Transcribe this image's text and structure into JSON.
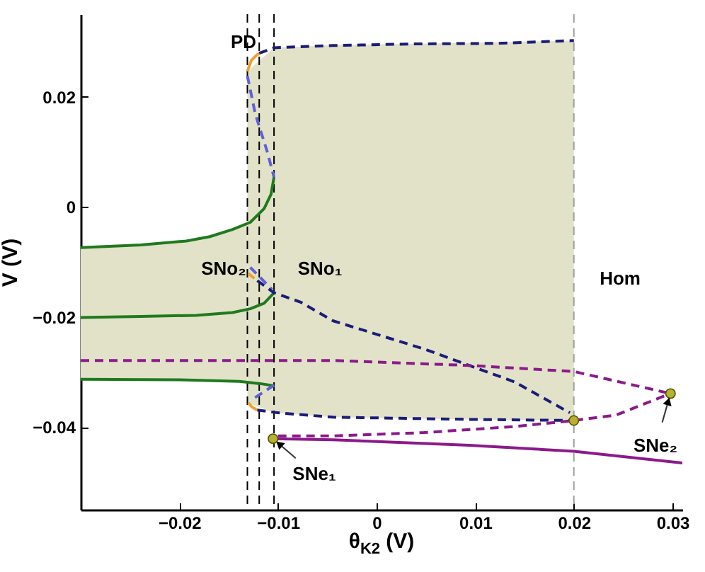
{
  "chart_data": {
    "type": "line",
    "xlabel": "θ$_{K2}$  (V)",
    "ylabel": "V   (V)",
    "xlim": [
      -0.03,
      0.031
    ],
    "ylim": [
      -0.055,
      0.035
    ],
    "xticks": [
      -0.02,
      -0.01,
      0,
      0.01,
      0.02,
      0.03
    ],
    "yticks": [
      -0.04,
      -0.02,
      0,
      0.02
    ],
    "grid": false,
    "marker": "none",
    "series": [
      {
        "type": "line",
        "color": "#e2e2c8",
        "x": [
          -0.03,
          -0.0239,
          -0.0193,
          -0.0146,
          -0.0131
        ],
        "values": [
          null,
          null,
          null,
          null,
          null
        ],
        "upper": [
          -0.0074,
          -0.0069,
          -0.0062,
          -0.0041,
          -0.0031
        ],
        "lower": [
          -0.0313,
          -0.0314,
          -0.0314,
          -0.0316,
          -0.0317
        ]
      },
      {
        "type": "line",
        "color": "#e2e2c8",
        "x": [
          -0.0131,
          -0.0104,
          -0.0044,
          0.0094,
          0.02
        ],
        "values": [
          null,
          null,
          null,
          null,
          null
        ],
        "upper": [
          0.0246,
          0.0289,
          0.0294,
          0.0298,
          0.0302
        ],
        "lower": [
          -0.0356,
          -0.0374,
          -0.0382,
          -0.0386,
          -0.0388
        ]
      },
      {
        "color": "#1f7a1f",
        "line_style": "solid",
        "x": [
          -0.03,
          -0.0239,
          -0.0193,
          -0.0169,
          -0.0146,
          -0.0128,
          -0.0114,
          -0.0107,
          -0.0104
        ],
        "values": [
          -0.0074,
          -0.0069,
          -0.0062,
          -0.0054,
          -0.0041,
          -0.0028,
          -0.0003,
          0.0023,
          0.0054
        ]
      },
      {
        "color": "#1f7a1f",
        "line_style": "solid",
        "x": [
          -0.03,
          -0.0239,
          -0.0183,
          -0.0146,
          -0.0128,
          -0.0114,
          -0.0104
        ],
        "values": [
          -0.0201,
          -0.0199,
          -0.0197,
          -0.0192,
          -0.0185,
          -0.0175,
          -0.0156
        ]
      },
      {
        "color": "#1f7a1f",
        "line_style": "solid",
        "x": [
          -0.03,
          -0.02,
          -0.0139,
          -0.0118,
          -0.0104
        ],
        "values": [
          -0.0313,
          -0.0314,
          -0.0317,
          -0.0321,
          -0.0325
        ]
      },
      {
        "color": "#f0a030",
        "line_style": "solid",
        "x": [
          -0.0131,
          -0.0127,
          -0.0122,
          -0.0119,
          -0.0125,
          -0.013,
          -0.0124,
          -0.0127,
          -0.013,
          -0.0126,
          -0.0121
        ],
        "values": [
          0.0246,
          0.0266,
          0.0275,
          0.0279,
          null,
          -0.0121,
          -0.013,
          null,
          -0.0356,
          -0.0364,
          -0.0369
        ]
      },
      {
        "color": "#6060d8",
        "line_style": "dashed",
        "x": [
          -0.0131,
          -0.0123,
          -0.0111,
          -0.0104
        ],
        "values": [
          0.0238,
          0.0169,
          0.0101,
          0.0054
        ]
      },
      {
        "color": "#6060d8",
        "line_style": "dashed",
        "x": [
          -0.0128,
          -0.0106
        ],
        "values": [
          -0.011,
          -0.015
        ]
      },
      {
        "color": "#6060d8",
        "line_style": "dashed",
        "x": [
          -0.0104,
          -0.0128
        ],
        "values": [
          -0.0324,
          -0.0352
        ]
      },
      {
        "color": "#1c1c78",
        "line_style": "dashed",
        "x": [
          -0.0119,
          -0.0104,
          -0.0044,
          0.0039,
          0.0122,
          0.02
        ],
        "values": [
          0.0279,
          0.0289,
          0.0293,
          0.0296,
          0.0297,
          0.0302
        ]
      },
      {
        "color": "#1c1c78",
        "line_style": "dashed",
        "x": [
          -0.0121,
          -0.0104,
          -0.0077,
          -0.0044,
          0.0048,
          0.014,
          0.0196
        ],
        "values": [
          -0.0134,
          -0.0156,
          -0.0173,
          -0.0207,
          -0.0258,
          -0.0318,
          -0.0374
        ]
      },
      {
        "color": "#1c1c78",
        "line_style": "dashed",
        "x": [
          -0.0121,
          -0.01,
          -0.0044,
          0.0094,
          0.02
        ],
        "values": [
          -0.0369,
          -0.0374,
          -0.0382,
          -0.0386,
          -0.0388
        ]
      },
      {
        "color": "#8b1a8b",
        "line_style": "dashed",
        "x": [
          -0.03,
          -0.0044,
          0.0094,
          0.02,
          0.0298
        ],
        "values": [
          -0.0279,
          -0.0279,
          -0.0288,
          -0.0299,
          -0.0339
        ]
      },
      {
        "color": "#8b1a8b",
        "line_style": "dashed",
        "x": [
          -0.01,
          -0.0044,
          0.0048,
          0.014,
          0.02,
          0.0243,
          0.0298
        ],
        "values": [
          -0.0416,
          -0.0416,
          -0.041,
          -0.0399,
          -0.0388,
          -0.0378,
          -0.0339
        ]
      },
      {
        "color": "#8b1a8b",
        "line_style": "solid",
        "x": [
          -0.0105,
          -0.0044,
          0.0094,
          0.02,
          0.031
        ],
        "values": [
          -0.0421,
          -0.0423,
          -0.0433,
          -0.0444,
          -0.0465
        ]
      },
      {
        "type": "scatter",
        "marker": "circle",
        "color": "#b8b030",
        "x": [
          -0.0105,
          0.02,
          0.0298
        ],
        "values": [
          -0.0421,
          -0.0388,
          -0.0339
        ]
      }
    ],
    "ref_lines": [
      {
        "axis": "x",
        "value": -0.0131,
        "color": "#000000",
        "line_style": "dashed"
      },
      {
        "axis": "x",
        "value": -0.0119,
        "color": "#000000",
        "line_style": "dashed"
      },
      {
        "axis": "x",
        "value": -0.0104,
        "color": "#000000",
        "line_style": "dashed"
      },
      {
        "axis": "x",
        "value": 0.02,
        "color": "#a0a0a0",
        "line_style": "dashed"
      }
    ],
    "annotations": [
      "PD",
      "SNo₂",
      "SNo₁",
      "Hom",
      "SNe₁",
      "SNe₂"
    ]
  }
}
